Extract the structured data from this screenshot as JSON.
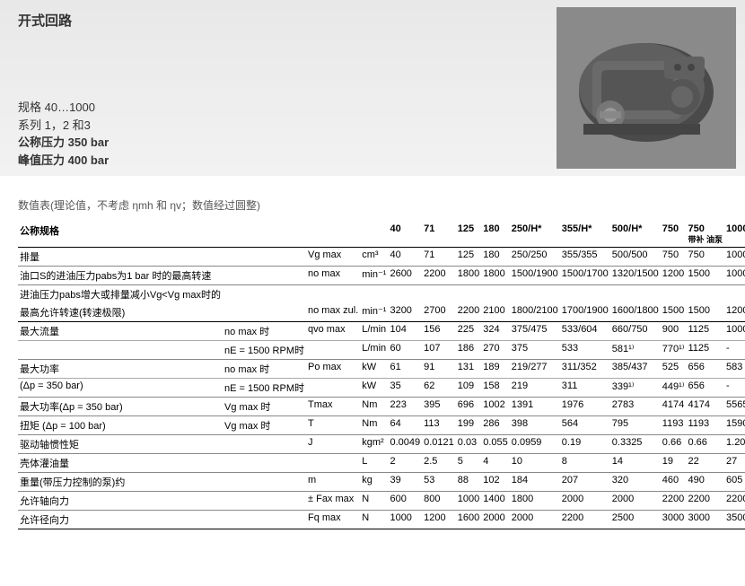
{
  "header": {
    "title": "开式回路",
    "specs": {
      "size": "规格 40…1000",
      "series": "系列 1，2 和3",
      "nominal": "公称压力 350 bar",
      "peak": "峰值压力 400 bar"
    }
  },
  "note": "数值表(理论值，不考虑 ηmh 和 ηv；数值经过圆整)",
  "table": {
    "title": "公称规格",
    "sizes": [
      "40",
      "71",
      "125",
      "180",
      "250/H*",
      "355/H*",
      "500/H*",
      "750",
      "750",
      "1000"
    ],
    "subhead_750b": "带补 油泵",
    "rows": [
      {
        "label": "排量",
        "cond": "",
        "sym": "Vg max",
        "unit": "cm³",
        "v": [
          "40",
          "71",
          "125",
          "180",
          "250/250",
          "355/355",
          "500/500",
          "750",
          "750",
          "1000"
        ]
      },
      {
        "label": "油口S的进油压力pabs为1 bar 时的最高转速",
        "cond": "",
        "sym": "no max",
        "unit": "min⁻¹",
        "v": [
          "2600",
          "2200",
          "1800",
          "1800",
          "1500/1900",
          "1500/1700",
          "1320/1500",
          "1200",
          "1500",
          "1000"
        ]
      },
      {
        "label": "进油压力pabs增大或排量减小Vg<Vg max时的",
        "cond": "",
        "sym": "",
        "unit": "",
        "v": [
          "",
          "",
          "",
          "",
          "",
          "",
          "",
          "",
          "",
          ""
        ],
        "noline": true
      },
      {
        "label": "最高允许转速(转速极限)",
        "cond": "",
        "sym": "no max zul.",
        "unit": "min⁻¹",
        "v": [
          "3200",
          "2700",
          "2200",
          "2100",
          "1800/2100",
          "1700/1900",
          "1600/1800",
          "1500",
          "1500",
          "1200"
        ],
        "thick": true
      },
      {
        "label": "最大流量",
        "cond": "no max 时",
        "sym": "qvo max",
        "unit": "L/min",
        "v": [
          "104",
          "156",
          "225",
          "324",
          "375/475",
          "533/604",
          "660/750",
          "900",
          "1125",
          "1000"
        ],
        "thin": true
      },
      {
        "label": "",
        "cond": "nE = 1500 RPM时",
        "sym": "",
        "unit": "L/min",
        "v": [
          "60",
          "107",
          "186",
          "270",
          "375",
          "533",
          "581¹⁾",
          "770¹⁾",
          "1125",
          "-"
        ]
      },
      {
        "label": "最大功率",
        "cond": "no max 时",
        "sym": "Po max",
        "unit": "kW",
        "v": [
          "61",
          "91",
          "131",
          "189",
          "219/277",
          "311/352",
          "385/437",
          "525",
          "656",
          "583"
        ],
        "thin": true
      },
      {
        "label": "(Δp = 350 bar)",
        "cond": "nE = 1500 RPM时",
        "sym": "",
        "unit": "kW",
        "v": [
          "35",
          "62",
          "109",
          "158",
          "219",
          "311",
          "339¹⁾",
          "449¹⁾",
          "656",
          "-"
        ]
      },
      {
        "label": "最大功率(Δp = 350 bar)",
        "cond": "Vg max 时",
        "sym": "Tmax",
        "unit": "Nm",
        "v": [
          "223",
          "395",
          "696",
          "1002",
          "1391",
          "1976",
          "2783",
          "4174",
          "4174",
          "5565"
        ]
      },
      {
        "label": "扭矩 (Δp = 100 bar)",
        "cond": "Vg max 时",
        "sym": "T",
        "unit": "Nm",
        "v": [
          "64",
          "113",
          "199",
          "286",
          "398",
          "564",
          "795",
          "1193",
          "1193",
          "1590"
        ]
      },
      {
        "label": "驱动轴惯性矩",
        "cond": "",
        "sym": "J",
        "unit": "kgm²",
        "v": [
          "0.0049",
          "0.0121",
          "0.03",
          "0.055",
          "0.0959",
          "0.19",
          "0.3325",
          "0.66",
          "0.66",
          "1.20"
        ]
      },
      {
        "label": "壳体灌油量",
        "cond": "",
        "sym": "",
        "unit": "L",
        "v": [
          "2",
          "2.5",
          "5",
          "4",
          "10",
          "8",
          "14",
          "19",
          "22",
          "27"
        ]
      },
      {
        "label": "重量(带压力控制的泵)约",
        "cond": "",
        "sym": "m",
        "unit": "kg",
        "v": [
          "39",
          "53",
          "88",
          "102",
          "184",
          "207",
          "320",
          "460",
          "490",
          "605"
        ]
      },
      {
        "label": "允许轴向力",
        "cond": "",
        "sym": "± Fax max",
        "unit": "N",
        "v": [
          "600",
          "800",
          "1000",
          "1400",
          "1800",
          "2000",
          "2000",
          "2200",
          "2200",
          "2200"
        ]
      },
      {
        "label": "允许径向力",
        "cond": "",
        "sym": "Fq max",
        "unit": "N",
        "v": [
          "1000",
          "1200",
          "1600",
          "2000",
          "2000",
          "2200",
          "2500",
          "3000",
          "3000",
          "3500"
        ],
        "thick": true
      }
    ]
  }
}
